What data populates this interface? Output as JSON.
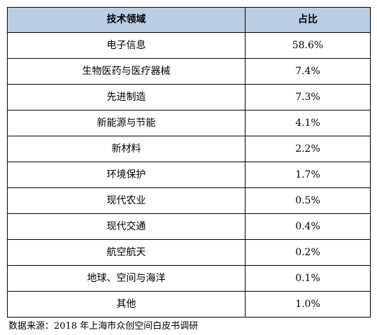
{
  "table": {
    "headers": [
      "技术领域",
      "占比"
    ],
    "rows": [
      [
        "电子信息",
        "58.6%"
      ],
      [
        "生物医药与医疗器械",
        "7.4%"
      ],
      [
        "先进制造",
        "7.3%"
      ],
      [
        "新能源与节能",
        "4.1%"
      ],
      [
        "新材料",
        "2.2%"
      ],
      [
        "环境保护",
        "1.7%"
      ],
      [
        "现代农业",
        "0.5%"
      ],
      [
        "现代交通",
        "0.4%"
      ],
      [
        "航空航天",
        "0.2%"
      ],
      [
        "地球、空间与海洋",
        "0.1%"
      ],
      [
        "其他",
        "1.0%"
      ]
    ],
    "header_color": "#b9cde5"
  },
  "source": "数据来源：2018 年上海市众创空间白皮书调研"
}
